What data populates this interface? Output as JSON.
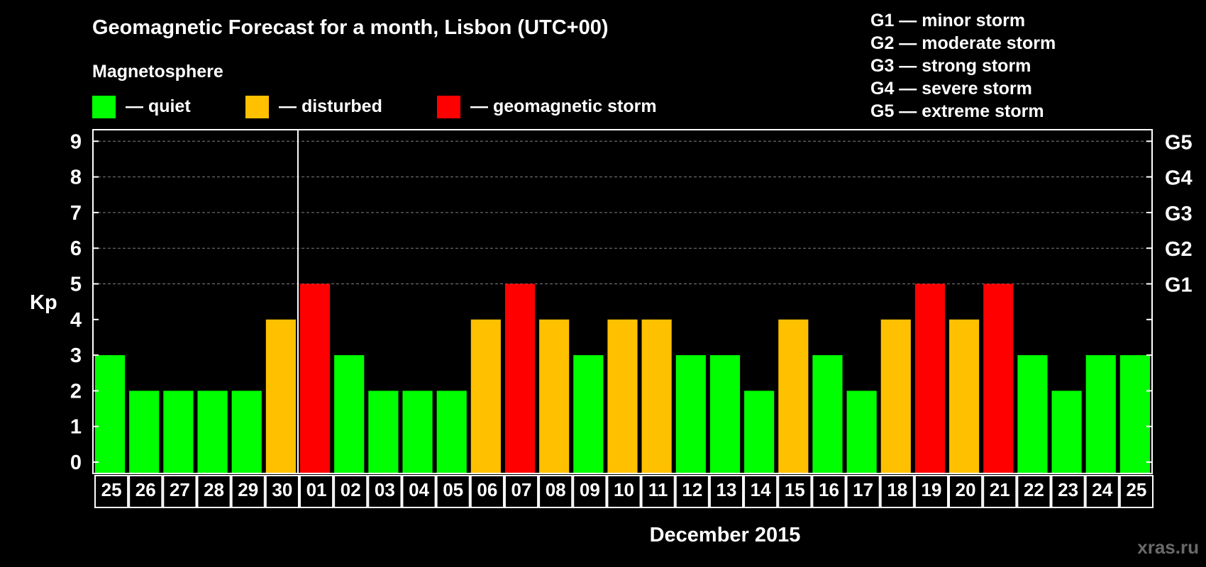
{
  "chart_data": {
    "type": "bar",
    "title": "Geomagnetic Forecast for a month, Lisbon (UTC+00)",
    "legend_title": "Magnetosphere",
    "legend": [
      {
        "key": "quiet",
        "label": "— quiet",
        "color": "#00ff00"
      },
      {
        "key": "disturbed",
        "label": "— disturbed",
        "color": "#ffc000"
      },
      {
        "key": "storm",
        "label": "— geomagnetic storm",
        "color": "#ff0000"
      }
    ],
    "storm_scale": [
      {
        "level": "G1",
        "label": "G1 — minor storm",
        "kp": 5
      },
      {
        "level": "G2",
        "label": "G2 — moderate storm",
        "kp": 6
      },
      {
        "level": "G3",
        "label": "G3 — strong storm",
        "kp": 7
      },
      {
        "level": "G4",
        "label": "G4 — severe storm",
        "kp": 8
      },
      {
        "level": "G5",
        "label": "G5 — extreme storm",
        "kp": 9
      }
    ],
    "ylabel": "Kp",
    "xlabel": "December 2015",
    "ylim": [
      0,
      9
    ],
    "yticks": [
      "0",
      "1",
      "2",
      "3",
      "4",
      "5",
      "6",
      "7",
      "8",
      "9"
    ],
    "month_boundary_after_index": 5,
    "categories": [
      "25",
      "26",
      "27",
      "28",
      "29",
      "30",
      "01",
      "02",
      "03",
      "04",
      "05",
      "06",
      "07",
      "08",
      "09",
      "10",
      "11",
      "12",
      "13",
      "14",
      "15",
      "16",
      "17",
      "18",
      "19",
      "20",
      "21",
      "22",
      "23",
      "24",
      "25"
    ],
    "values": [
      3,
      2,
      2,
      2,
      2,
      4,
      5,
      3,
      2,
      2,
      2,
      4,
      5,
      4,
      3,
      4,
      4,
      3,
      3,
      2,
      4,
      3,
      2,
      4,
      5,
      4,
      5,
      3,
      2,
      3,
      3
    ],
    "status": [
      "quiet",
      "quiet",
      "quiet",
      "quiet",
      "quiet",
      "disturbed",
      "storm",
      "quiet",
      "quiet",
      "quiet",
      "quiet",
      "disturbed",
      "storm",
      "disturbed",
      "quiet",
      "disturbed",
      "disturbed",
      "quiet",
      "quiet",
      "quiet",
      "disturbed",
      "quiet",
      "quiet",
      "disturbed",
      "storm",
      "disturbed",
      "storm",
      "quiet",
      "quiet",
      "quiet",
      "quiet"
    ],
    "grid": true,
    "watermark": "xras.ru"
  }
}
